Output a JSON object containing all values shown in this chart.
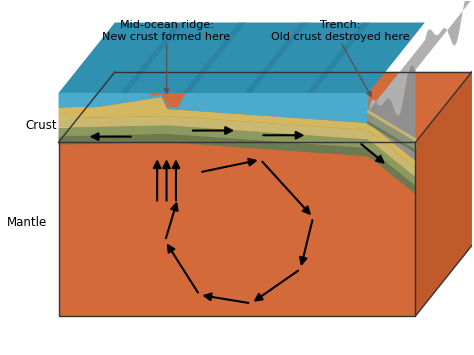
{
  "bg_color": "#ffffff",
  "mantle_color": "#d4693a",
  "mantle_shadow_color": "#c05a2a",
  "ocean_color": "#4aabcc",
  "ocean_dark_color": "#3090b0",
  "ocean_stripe_color": "#2a7a9a",
  "crust_layer1_color": "#c8b878",
  "crust_layer2_color": "#b0a870",
  "crust_layer3_color": "#98a060",
  "crust_layer4_color": "#808858",
  "rock_color": "#909090",
  "rock_dark_color": "#707070",
  "rock_light_color": "#b0b0b0",
  "label_ridge": "Mid-ocean ridge:\nNew crust formed here",
  "label_trench": "Trench:\nOld crust destroyed here",
  "label_crust": "Crust",
  "label_mantle": "Mantle",
  "arrow_color": "#000000",
  "figsize": [
    4.74,
    3.55
  ],
  "dpi": 100
}
